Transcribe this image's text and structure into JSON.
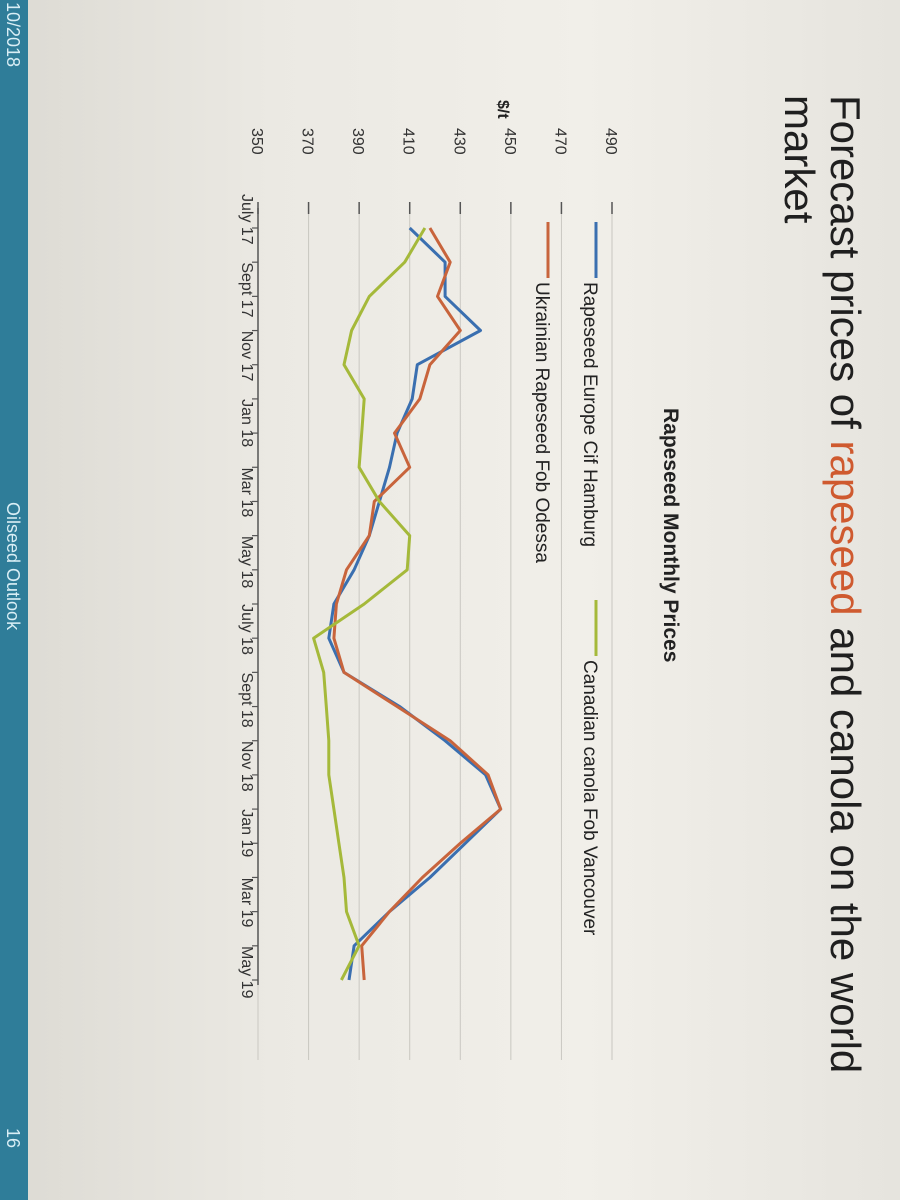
{
  "footer": {
    "date": "10/2018",
    "center": "Oilseed Outlook",
    "page_number": "16"
  },
  "page_title": {
    "prefix": "Forecast prices of ",
    "accent": "rapeseed",
    "suffix": " and canola on the world market"
  },
  "colors": {
    "rapeseed_europe": "#3a6fb0",
    "ukrainian": "#c8643c",
    "canadian": "#a5b93a",
    "footer_bar": "#2f7d99",
    "title_accent": "#cf5a2f"
  },
  "chart_data": {
    "type": "line",
    "title": "Rapeseed Monthly Prices",
    "ylabel": "$/t",
    "xlabel": "",
    "ylim": [
      350,
      490
    ],
    "yticks": [
      350,
      370,
      390,
      410,
      430,
      450,
      470,
      490
    ],
    "grid": true,
    "legend_placement": "top",
    "x": [
      "July 17",
      "Aug 17",
      "Sept 17",
      "Oct 17",
      "Nov 17",
      "Dec 17",
      "Jan 18",
      "Feb 18",
      "Mar 18",
      "Apr 18",
      "May 18",
      "June 18",
      "July 18",
      "Aug 18",
      "Sept 18",
      "Oct 18",
      "Nov 18",
      "Dec 18",
      "Jan 19",
      "Feb 19",
      "Mar 19",
      "Apr 19",
      "May 19"
    ],
    "x_tick_labels": [
      "July 17",
      "",
      "Sept 17",
      "",
      "Nov 17",
      "",
      "Jan 18",
      "",
      "Mar 18",
      "",
      "May 18",
      "",
      "July 18",
      "",
      "Sept 18",
      "",
      "Nov 18",
      "",
      "Jan 19",
      "",
      "Mar 19",
      "",
      "May 19"
    ],
    "series": [
      {
        "name": "Rapeseed Europe Cif Hamburg",
        "values": [
          410,
          424,
          424,
          438,
          413,
          411,
          405,
          402,
          398,
          394,
          388,
          380,
          378,
          384,
          406,
          424,
          440,
          446,
          432,
          418,
          402,
          388,
          386
        ]
      },
      {
        "name": "Ukrainian Rapeseed Fob Odessa",
        "values": [
          418,
          426,
          421,
          430,
          418,
          414,
          404,
          410,
          396,
          394,
          385,
          381,
          380,
          384,
          405,
          426,
          441,
          446,
          430,
          415,
          402,
          391,
          392
        ]
      },
      {
        "name": "Canadian canola Fob Vancouver",
        "values": [
          416,
          408,
          394,
          387,
          384,
          392,
          391,
          390,
          398,
          410,
          409,
          392,
          372,
          376,
          377,
          378,
          378,
          380,
          382,
          384,
          385,
          390,
          383
        ]
      }
    ]
  }
}
